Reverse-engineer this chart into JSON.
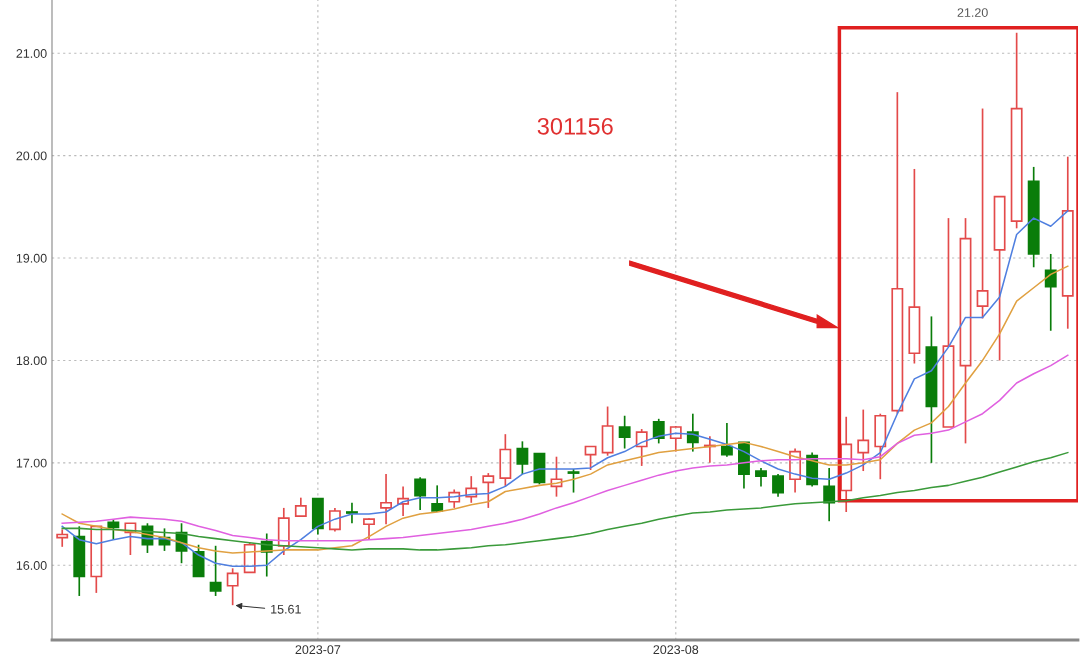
{
  "chart_data": {
    "type": "candlestick",
    "categories": [
      null,
      null,
      null,
      null,
      null,
      null,
      null,
      null,
      null,
      null,
      null,
      null,
      null,
      null,
      null,
      "2023-07",
      null,
      null,
      null,
      null,
      null,
      null,
      null,
      null,
      null,
      null,
      null,
      null,
      null,
      null,
      null,
      null,
      null,
      null,
      null,
      null,
      "2023-08",
      null,
      null,
      null,
      null,
      null,
      null,
      null,
      null,
      null,
      null,
      null,
      null,
      null,
      null,
      null,
      null,
      null,
      null,
      null,
      null,
      null,
      null,
      null
    ],
    "ohlc": [
      [
        16.27,
        16.35,
        16.18,
        16.3
      ],
      [
        16.28,
        16.38,
        15.7,
        15.89
      ],
      [
        15.89,
        16.38,
        15.73,
        16.38
      ],
      [
        16.42,
        16.45,
        16.25,
        16.37
      ],
      [
        16.32,
        16.41,
        16.1,
        16.41
      ],
      [
        16.38,
        16.41,
        16.12,
        16.2
      ],
      [
        16.27,
        16.36,
        16.14,
        16.2
      ],
      [
        16.32,
        16.41,
        16.02,
        16.14
      ],
      [
        16.13,
        16.2,
        15.89,
        15.89
      ],
      [
        15.83,
        16.19,
        15.7,
        15.75
      ],
      [
        15.8,
        15.97,
        15.61,
        15.92
      ],
      [
        15.93,
        16.22,
        15.93,
        16.2
      ],
      [
        16.23,
        16.31,
        15.89,
        16.13
      ],
      [
        16.19,
        16.56,
        16.1,
        16.46
      ],
      [
        16.48,
        16.66,
        16.48,
        16.58
      ],
      [
        16.65,
        16.65,
        16.3,
        16.36
      ],
      [
        16.35,
        16.56,
        16.33,
        16.53
      ],
      [
        16.52,
        16.61,
        16.41,
        16.51
      ],
      [
        16.4,
        16.46,
        16.25,
        16.45
      ],
      [
        16.56,
        16.89,
        16.4,
        16.61
      ],
      [
        16.6,
        16.77,
        16.48,
        16.65
      ],
      [
        16.84,
        16.86,
        16.54,
        16.68
      ],
      [
        16.6,
        16.78,
        16.52,
        16.53
      ],
      [
        16.62,
        16.74,
        16.56,
        16.71
      ],
      [
        16.67,
        16.87,
        16.61,
        16.75
      ],
      [
        16.81,
        16.9,
        16.56,
        16.87
      ],
      [
        16.85,
        17.28,
        16.77,
        17.13
      ],
      [
        17.14,
        17.21,
        16.89,
        16.99
      ],
      [
        17.09,
        17.09,
        16.79,
        16.81
      ],
      [
        16.77,
        17.06,
        16.67,
        16.84
      ],
      [
        16.91,
        16.94,
        16.71,
        16.9
      ],
      [
        17.08,
        17.16,
        16.93,
        17.16
      ],
      [
        17.1,
        17.55,
        17.07,
        17.36
      ],
      [
        17.35,
        17.46,
        17.14,
        17.25
      ],
      [
        17.16,
        17.33,
        16.97,
        17.3
      ],
      [
        17.4,
        17.43,
        17.19,
        17.24
      ],
      [
        17.24,
        17.36,
        17.11,
        17.35
      ],
      [
        17.3,
        17.48,
        17.11,
        17.2
      ],
      [
        17.16,
        17.26,
        17.0,
        17.17
      ],
      [
        17.16,
        17.39,
        17.06,
        17.08
      ],
      [
        17.2,
        17.2,
        16.75,
        16.89
      ],
      [
        16.92,
        16.95,
        16.77,
        16.87
      ],
      [
        16.87,
        16.89,
        16.67,
        16.71
      ],
      [
        16.84,
        17.14,
        16.71,
        17.11
      ],
      [
        17.07,
        17.1,
        16.77,
        16.79
      ],
      [
        16.77,
        16.95,
        16.43,
        16.61
      ],
      [
        16.73,
        17.45,
        16.52,
        17.18
      ],
      [
        17.1,
        17.52,
        16.92,
        17.22
      ],
      [
        17.16,
        17.48,
        16.84,
        17.46
      ],
      [
        17.51,
        20.62,
        17.48,
        18.7
      ],
      [
        18.07,
        19.87,
        17.97,
        18.52
      ],
      [
        18.13,
        18.43,
        17.0,
        17.55
      ],
      [
        17.35,
        19.39,
        17.35,
        18.14
      ],
      [
        17.95,
        19.39,
        17.19,
        19.19
      ],
      [
        18.53,
        20.46,
        18.41,
        18.68
      ],
      [
        19.08,
        19.6,
        18.0,
        19.6
      ],
      [
        19.36,
        21.2,
        19.29,
        20.46
      ],
      [
        19.75,
        19.89,
        18.91,
        19.04
      ],
      [
        18.88,
        19.04,
        18.29,
        18.72
      ],
      [
        18.63,
        19.99,
        18.31,
        19.46
      ]
    ],
    "colors": [
      "#e34a4a",
      "#0a7d0a",
      "#e34a4a",
      "#0a7d0a",
      "#e34a4a",
      "#0a7d0a",
      "#0a7d0a",
      "#0a7d0a",
      "#0a7d0a",
      "#0a7d0a",
      "#e34a4a",
      "#e34a4a",
      "#0a7d0a",
      "#e34a4a",
      "#e34a4a",
      "#0a7d0a",
      "#e34a4a",
      "#0a7d0a",
      "#e34a4a",
      "#e34a4a",
      "#e34a4a",
      "#0a7d0a",
      "#0a7d0a",
      "#e34a4a",
      "#e34a4a",
      "#e34a4a",
      "#e34a4a",
      "#0a7d0a",
      "#0a7d0a",
      "#e34a4a",
      "#0a7d0a",
      "#e34a4a",
      "#e34a4a",
      "#0a7d0a",
      "#e34a4a",
      "#0a7d0a",
      "#e34a4a",
      "#0a7d0a",
      "#e34a4a",
      "#0a7d0a",
      "#0a7d0a",
      "#0a7d0a",
      "#0a7d0a",
      "#e34a4a",
      "#0a7d0a",
      "#0a7d0a",
      "#e34a4a",
      "#e34a4a",
      "#e34a4a",
      "#e34a4a",
      "#e34a4a",
      "#0a7d0a",
      "#e34a4a",
      "#e34a4a",
      "#e34a4a",
      "#e34a4a",
      "#e34a4a",
      "#0a7d0a",
      "#0a7d0a",
      "#e34a4a"
    ],
    "series": [
      {
        "type": "line",
        "color": "#4f7fe0",
        "values": [
          16.38,
          16.25,
          16.21,
          16.25,
          16.28,
          16.26,
          16.26,
          16.22,
          16.1,
          16.02,
          15.99,
          15.99,
          16.0,
          16.14,
          16.25,
          16.38,
          16.45,
          16.5,
          16.5,
          16.52,
          16.62,
          16.66,
          16.66,
          16.67,
          16.69,
          16.7,
          16.77,
          16.89,
          16.94,
          16.94,
          16.94,
          16.95,
          17.05,
          17.11,
          17.2,
          17.26,
          17.29,
          17.28,
          17.23,
          17.18,
          17.11,
          17.02,
          16.94,
          16.89,
          16.85,
          16.84,
          16.9,
          16.98,
          17.1,
          17.48,
          17.82,
          17.9,
          18.13,
          18.42,
          18.42,
          18.62,
          19.23,
          19.39,
          19.31,
          19.46
        ]
      },
      {
        "type": "line",
        "color": "#e0a040",
        "values": [
          16.5,
          16.41,
          16.38,
          16.35,
          16.33,
          16.3,
          16.27,
          16.22,
          16.17,
          16.14,
          16.12,
          16.13,
          16.14,
          16.15,
          16.15,
          16.15,
          16.17,
          16.19,
          16.28,
          16.38,
          16.46,
          16.5,
          16.52,
          16.55,
          16.59,
          16.62,
          16.72,
          16.75,
          16.78,
          16.8,
          16.84,
          16.89,
          16.98,
          17.02,
          17.06,
          17.1,
          17.12,
          17.14,
          17.16,
          17.18,
          17.2,
          17.16,
          17.11,
          17.06,
          17.02,
          16.98,
          16.98,
          17.0,
          17.03,
          17.19,
          17.32,
          17.39,
          17.55,
          17.78,
          18.0,
          18.26,
          18.58,
          18.71,
          18.84,
          18.92
        ]
      },
      {
        "type": "line",
        "color": "#e060e0",
        "values": [
          16.41,
          16.42,
          16.43,
          16.45,
          16.47,
          16.46,
          16.45,
          16.43,
          16.38,
          16.34,
          16.29,
          16.27,
          16.25,
          16.24,
          16.24,
          16.24,
          16.24,
          16.24,
          16.25,
          16.26,
          16.27,
          16.29,
          16.31,
          16.33,
          16.35,
          16.38,
          16.41,
          16.45,
          16.5,
          16.56,
          16.61,
          16.67,
          16.73,
          16.78,
          16.83,
          16.88,
          16.92,
          16.95,
          16.97,
          16.98,
          17.0,
          17.02,
          17.03,
          17.03,
          17.04,
          17.04,
          17.04,
          17.03,
          17.06,
          17.19,
          17.27,
          17.29,
          17.32,
          17.4,
          17.48,
          17.61,
          17.78,
          17.87,
          17.95,
          18.05
        ]
      },
      {
        "type": "line",
        "color": "#3a9a3a",
        "values": [
          16.36,
          16.36,
          16.35,
          16.35,
          16.34,
          16.33,
          16.32,
          16.31,
          16.28,
          16.26,
          16.24,
          16.22,
          16.2,
          16.19,
          16.18,
          16.17,
          16.16,
          16.15,
          16.16,
          16.16,
          16.16,
          16.15,
          16.15,
          16.16,
          16.17,
          16.19,
          16.2,
          16.22,
          16.24,
          16.26,
          16.28,
          16.31,
          16.35,
          16.38,
          16.41,
          16.45,
          16.48,
          16.51,
          16.52,
          16.54,
          16.55,
          16.56,
          16.58,
          16.6,
          16.61,
          16.62,
          16.63,
          16.66,
          16.68,
          16.71,
          16.73,
          16.76,
          16.78,
          16.82,
          16.86,
          16.91,
          16.96,
          17.01,
          17.05,
          17.1
        ]
      }
    ],
    "ylim": [
      15.27,
      21.52
    ],
    "yticks": [
      {
        "value": 16,
        "label": "16.00"
      },
      {
        "value": 17,
        "label": "17.00"
      },
      {
        "value": 18,
        "label": "18.00"
      },
      {
        "value": 19,
        "label": "19.00"
      },
      {
        "value": 20,
        "label": "20.00"
      },
      {
        "value": 21,
        "label": "21.00"
      }
    ],
    "grid": true,
    "line_style": "solid",
    "marker": "none",
    "annotations": [
      "15.61",
      "21.20",
      "301156"
    ]
  }
}
